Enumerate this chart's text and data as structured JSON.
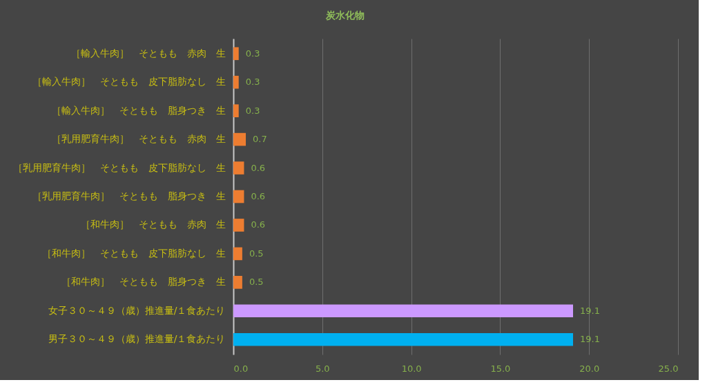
{
  "chart_data": {
    "type": "bar",
    "orientation": "horizontal",
    "title": "炭水化物",
    "categories": [
      "［輸入牛肉］　そともも　赤肉　生",
      "［輸入牛肉］　そともも　皮下脂肪なし　生",
      "［輸入牛肉］　そともも　脂身つき　生",
      "［乳用肥育牛肉］　そともも　赤肉　生",
      "［乳用肥育牛肉］　そともも　皮下脂肪なし　生",
      "［乳用肥育牛肉］　そともも　脂身つき　生",
      "［和牛肉］　そともも　赤肉　生",
      "［和牛肉］　そともも　皮下脂肪なし　生",
      "［和牛肉］　そともも　脂身つき　生",
      "女子３０～４９（歳）推進量/１食あたり",
      "男子３０～４９（歳）推進量/１食あたり"
    ],
    "values": [
      0.3,
      0.3,
      0.3,
      0.7,
      0.6,
      0.6,
      0.6,
      0.5,
      0.5,
      19.1,
      19.1
    ],
    "colors": [
      "#ed7d31",
      "#ed7d31",
      "#ed7d31",
      "#ed7d31",
      "#ed7d31",
      "#ed7d31",
      "#ed7d31",
      "#ed7d31",
      "#ed7d31",
      "#cc99ff",
      "#00b0f0"
    ],
    "xlim": [
      0,
      25
    ],
    "xticks": [
      {
        "value": 0,
        "label": "0.0"
      },
      {
        "value": 5,
        "label": "5.0"
      },
      {
        "value": 10,
        "label": "10.0"
      },
      {
        "value": 15,
        "label": "15.0"
      },
      {
        "value": 20,
        "label": "20.0"
      },
      {
        "value": 25,
        "label": "25.0"
      }
    ],
    "grid": "x",
    "data_labels": true
  }
}
